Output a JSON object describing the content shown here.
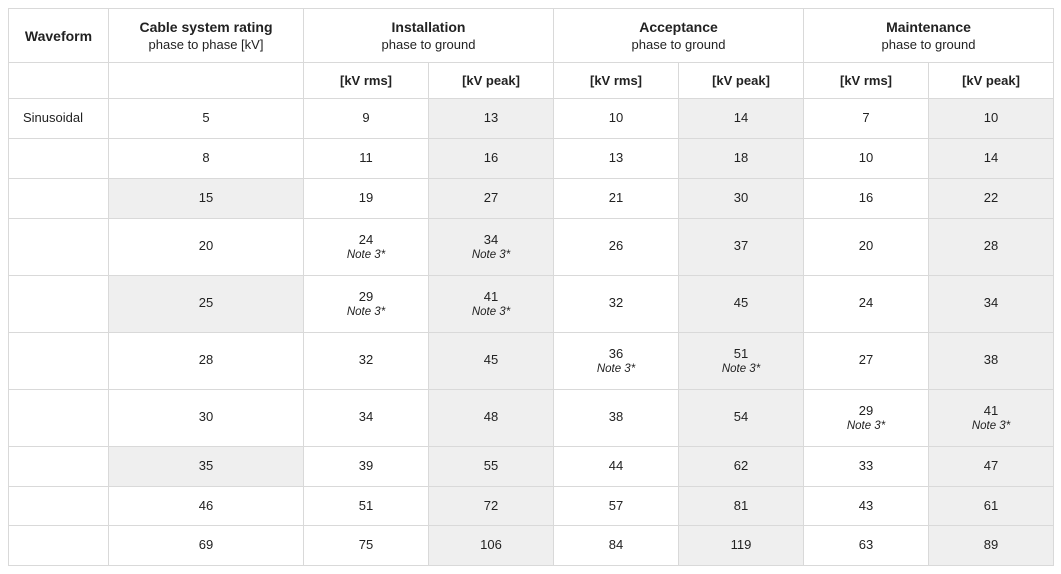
{
  "colors": {
    "border": "#d9d9d9",
    "shade": "#efefef",
    "white": "#ffffff",
    "highlight_outer": "#ffcf00",
    "highlight_inner": "#ffe65e",
    "text": "#222222"
  },
  "header": {
    "waveform": {
      "title": "Waveform",
      "sub": ""
    },
    "rating": {
      "title": "Cable system rating",
      "sub": "phase to phase [kV]"
    },
    "installation": {
      "title": "Installation",
      "sub": "phase to ground"
    },
    "acceptance": {
      "title": "Acceptance",
      "sub": "phase to ground"
    },
    "maintenance": {
      "title": "Maintenance",
      "sub": "phase to ground"
    }
  },
  "subheader": {
    "rms": "[kV rms]",
    "peak": "[kV peak]"
  },
  "waveform_label": "Sinusoidal",
  "note_text": "Note 3*",
  "columns": {
    "shaded": [
      false,
      false,
      false,
      true,
      false,
      true,
      false,
      true
    ]
  },
  "rows": [
    {
      "label": "Sinusoidal",
      "shade_row": false,
      "cells": [
        {
          "v": "5"
        },
        {
          "v": "9"
        },
        {
          "v": "13"
        },
        {
          "v": "10"
        },
        {
          "v": "14"
        },
        {
          "v": "7"
        },
        {
          "v": "10"
        }
      ]
    },
    {
      "label": "",
      "shade_row": false,
      "cells": [
        {
          "v": "8"
        },
        {
          "v": "11"
        },
        {
          "v": "16"
        },
        {
          "v": "13"
        },
        {
          "v": "18"
        },
        {
          "v": "10"
        },
        {
          "v": "14"
        }
      ]
    },
    {
      "label": "",
      "shade_row": true,
      "cells": [
        {
          "v": "15"
        },
        {
          "v": "19"
        },
        {
          "v": "27"
        },
        {
          "v": "21"
        },
        {
          "v": "30"
        },
        {
          "v": "16"
        },
        {
          "v": "22"
        }
      ]
    },
    {
      "label": "",
      "shade_row": false,
      "tall": true,
      "cells": [
        {
          "v": "20"
        },
        {
          "v": "24",
          "note": true,
          "hl": true
        },
        {
          "v": "34",
          "note": true,
          "hl": true
        },
        {
          "v": "26"
        },
        {
          "v": "37"
        },
        {
          "v": "20"
        },
        {
          "v": "28"
        }
      ]
    },
    {
      "label": "",
      "shade_row": true,
      "tall": true,
      "cells": [
        {
          "v": "25"
        },
        {
          "v": "29",
          "note": true,
          "hl": true
        },
        {
          "v": "41",
          "note": true,
          "hl": true
        },
        {
          "v": "32"
        },
        {
          "v": "45"
        },
        {
          "v": "24"
        },
        {
          "v": "34"
        }
      ]
    },
    {
      "label": "",
      "shade_row": false,
      "tall": true,
      "cells": [
        {
          "v": "28"
        },
        {
          "v": "32"
        },
        {
          "v": "45"
        },
        {
          "v": "36",
          "note": true,
          "hl": true
        },
        {
          "v": "51",
          "note": true,
          "hl": true
        },
        {
          "v": "27"
        },
        {
          "v": "38"
        }
      ]
    },
    {
      "label": "",
      "shade_row": false,
      "tall": true,
      "cells": [
        {
          "v": "30"
        },
        {
          "v": "34"
        },
        {
          "v": "48"
        },
        {
          "v": "38"
        },
        {
          "v": "54"
        },
        {
          "v": "29",
          "note": true,
          "hl": true
        },
        {
          "v": "41",
          "note": true,
          "hl": true
        }
      ]
    },
    {
      "label": "",
      "shade_row": true,
      "cells": [
        {
          "v": "35"
        },
        {
          "v": "39"
        },
        {
          "v": "55"
        },
        {
          "v": "44"
        },
        {
          "v": "62"
        },
        {
          "v": "33"
        },
        {
          "v": "47"
        }
      ]
    },
    {
      "label": "",
      "shade_row": false,
      "cells": [
        {
          "v": "46"
        },
        {
          "v": "51"
        },
        {
          "v": "72"
        },
        {
          "v": "57"
        },
        {
          "v": "81"
        },
        {
          "v": "43"
        },
        {
          "v": "61"
        }
      ]
    },
    {
      "label": "",
      "shade_row": false,
      "cells": [
        {
          "v": "69"
        },
        {
          "v": "75"
        },
        {
          "v": "106"
        },
        {
          "v": "84"
        },
        {
          "v": "119"
        },
        {
          "v": "63"
        },
        {
          "v": "89"
        }
      ]
    }
  ]
}
